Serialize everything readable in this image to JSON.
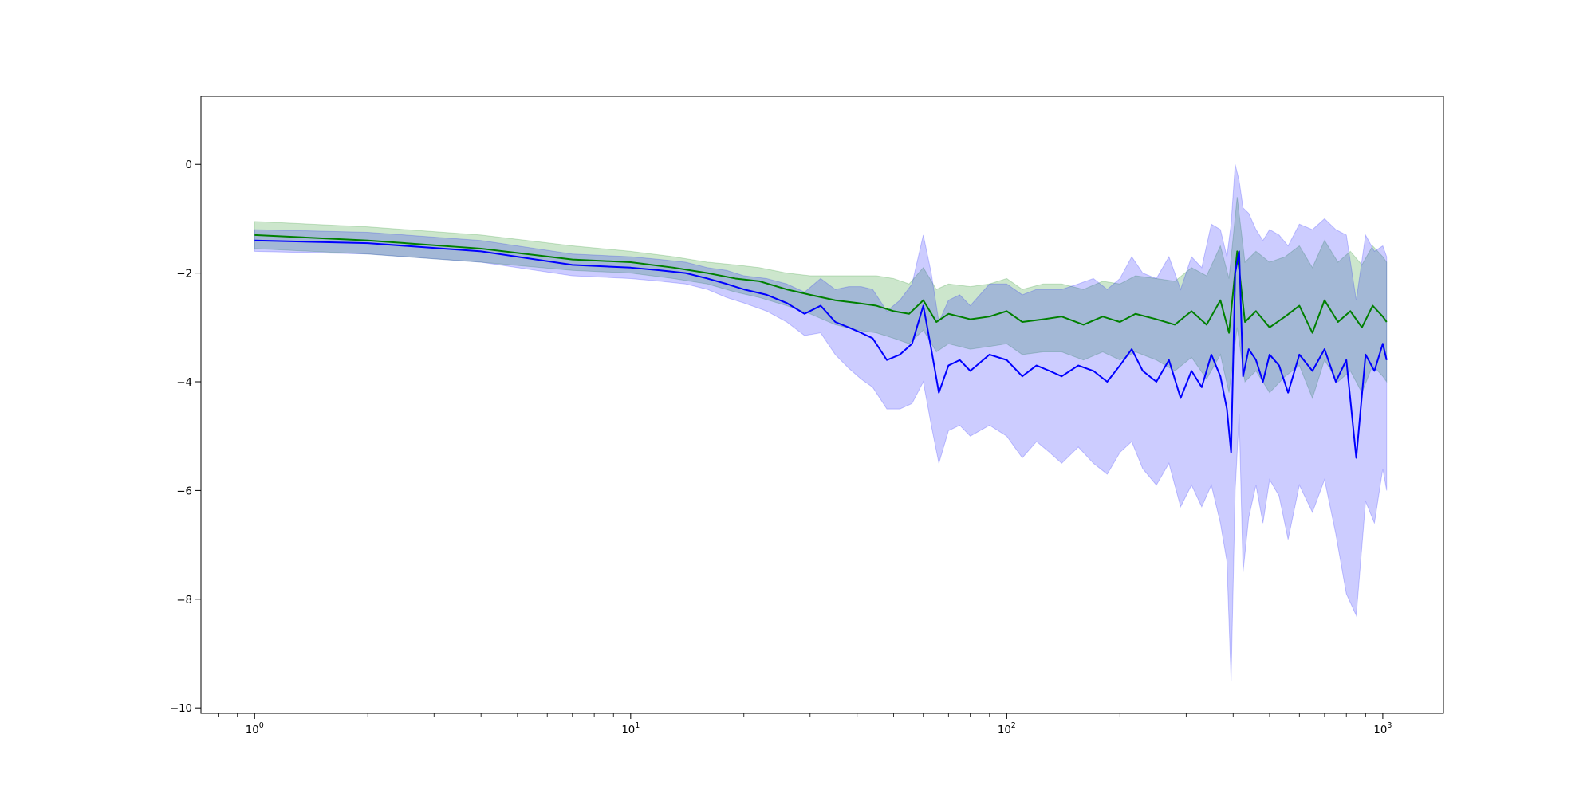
{
  "chart_data": {
    "type": "line",
    "title": "",
    "xlabel": "",
    "ylabel": "",
    "xscale": "log",
    "xlim": [
      0.72,
      1450
    ],
    "ylim": [
      -10.1,
      1.25
    ],
    "grid": false,
    "legend": "none",
    "x_ticks": [
      {
        "base": "10",
        "exp": "0",
        "value": 1
      },
      {
        "base": "10",
        "exp": "1",
        "value": 10
      },
      {
        "base": "10",
        "exp": "2",
        "value": 100
      },
      {
        "base": "10",
        "exp": "3",
        "value": 1000
      }
    ],
    "y_ticks": [
      {
        "label": "0",
        "value": 0
      },
      {
        "label": "−2",
        "value": -2
      },
      {
        "label": "−4",
        "value": -4
      },
      {
        "label": "−6",
        "value": -6
      },
      {
        "label": "−8",
        "value": -8
      },
      {
        "label": "−10",
        "value": -10
      }
    ],
    "series": [
      {
        "color": "#008000",
        "band_color": "#008000",
        "band_opacity": 0.2,
        "x": [
          1,
          2,
          4,
          7,
          10,
          13,
          16,
          19,
          22,
          26,
          30,
          35,
          40,
          45,
          50,
          55,
          60,
          65,
          70,
          80,
          90,
          100,
          110,
          125,
          140,
          160,
          180,
          200,
          220,
          250,
          280,
          310,
          340,
          370,
          390,
          410,
          430,
          460,
          500,
          550,
          600,
          650,
          700,
          760,
          820,
          880,
          940,
          1000,
          1024
        ],
        "values": [
          -1.3,
          -1.4,
          -1.55,
          -1.75,
          -1.8,
          -1.9,
          -2.0,
          -2.1,
          -2.15,
          -2.3,
          -2.4,
          -2.5,
          -2.55,
          -2.6,
          -2.7,
          -2.75,
          -2.5,
          -2.9,
          -2.75,
          -2.85,
          -2.8,
          -2.7,
          -2.9,
          -2.85,
          -2.8,
          -2.95,
          -2.8,
          -2.9,
          -2.75,
          -2.85,
          -2.95,
          -2.7,
          -2.95,
          -2.5,
          -3.1,
          -1.6,
          -2.9,
          -2.7,
          -3.0,
          -2.8,
          -2.6,
          -3.1,
          -2.5,
          -2.9,
          -2.7,
          -3.0,
          -2.6,
          -2.8,
          -2.9
        ],
        "band_low": [
          -1.55,
          -1.65,
          -1.8,
          -1.95,
          -2.0,
          -2.1,
          -2.2,
          -2.35,
          -2.45,
          -2.6,
          -2.75,
          -2.95,
          -3.05,
          -3.1,
          -3.2,
          -3.3,
          -3.05,
          -3.45,
          -3.3,
          -3.4,
          -3.35,
          -3.3,
          -3.5,
          -3.45,
          -3.45,
          -3.6,
          -3.45,
          -3.6,
          -3.45,
          -3.6,
          -3.8,
          -3.55,
          -3.95,
          -3.5,
          -4.2,
          -3.0,
          -4.0,
          -3.8,
          -4.2,
          -3.9,
          -3.7,
          -4.3,
          -3.6,
          -4.0,
          -3.8,
          -4.2,
          -3.7,
          -3.9,
          -4.0
        ],
        "band_high": [
          -1.05,
          -1.15,
          -1.3,
          -1.5,
          -1.6,
          -1.7,
          -1.8,
          -1.85,
          -1.9,
          -2.0,
          -2.05,
          -2.05,
          -2.05,
          -2.05,
          -2.1,
          -2.2,
          -1.9,
          -2.3,
          -2.2,
          -2.25,
          -2.2,
          -2.1,
          -2.3,
          -2.2,
          -2.2,
          -2.3,
          -2.15,
          -2.2,
          -2.05,
          -2.1,
          -2.15,
          -1.9,
          -2.05,
          -1.5,
          -2.1,
          -0.6,
          -1.8,
          -1.6,
          -1.8,
          -1.7,
          -1.5,
          -1.9,
          -1.4,
          -1.8,
          -1.6,
          -1.85,
          -1.5,
          -1.7,
          -1.8
        ]
      },
      {
        "color": "#0000ff",
        "band_color": "#0000ff",
        "band_opacity": 0.2,
        "x": [
          1,
          2,
          4,
          7,
          10,
          12,
          14,
          16,
          18,
          20,
          23,
          26,
          29,
          32,
          35,
          38,
          41,
          44,
          48,
          52,
          56,
          60,
          63,
          66,
          70,
          75,
          80,
          90,
          100,
          110,
          120,
          130,
          140,
          155,
          170,
          185,
          200,
          215,
          230,
          250,
          270,
          290,
          310,
          330,
          350,
          370,
          385,
          395,
          405,
          415,
          425,
          440,
          460,
          480,
          500,
          530,
          560,
          600,
          650,
          700,
          750,
          800,
          850,
          900,
          950,
          1000,
          1024
        ],
        "values": [
          -1.4,
          -1.45,
          -1.6,
          -1.85,
          -1.9,
          -1.95,
          -2.0,
          -2.1,
          -2.2,
          -2.3,
          -2.4,
          -2.55,
          -2.75,
          -2.6,
          -2.9,
          -3.0,
          -3.1,
          -3.2,
          -3.6,
          -3.5,
          -3.3,
          -2.6,
          -3.4,
          -4.2,
          -3.7,
          -3.6,
          -3.8,
          -3.5,
          -3.6,
          -3.9,
          -3.7,
          -3.8,
          -3.9,
          -3.7,
          -3.8,
          -4.0,
          -3.7,
          -3.4,
          -3.8,
          -4.0,
          -3.6,
          -4.3,
          -3.8,
          -4.1,
          -3.5,
          -3.9,
          -4.5,
          -5.3,
          -2.0,
          -1.6,
          -3.9,
          -3.4,
          -3.6,
          -4.0,
          -3.5,
          -3.7,
          -4.2,
          -3.5,
          -3.8,
          -3.4,
          -4.0,
          -3.6,
          -5.4,
          -3.5,
          -3.8,
          -3.3,
          -3.6
        ],
        "band_low": [
          -1.6,
          -1.65,
          -1.8,
          -2.05,
          -2.1,
          -2.15,
          -2.2,
          -2.3,
          -2.45,
          -2.55,
          -2.7,
          -2.9,
          -3.15,
          -3.1,
          -3.5,
          -3.75,
          -3.95,
          -4.1,
          -4.5,
          -4.5,
          -4.4,
          -4.0,
          -4.8,
          -5.5,
          -4.9,
          -4.8,
          -5.0,
          -4.8,
          -5.0,
          -5.4,
          -5.1,
          -5.3,
          -5.5,
          -5.2,
          -5.5,
          -5.7,
          -5.3,
          -5.1,
          -5.6,
          -5.9,
          -5.5,
          -6.3,
          -5.9,
          -6.3,
          -5.9,
          -6.6,
          -7.3,
          -9.5,
          -6.0,
          -4.6,
          -7.5,
          -6.5,
          -5.9,
          -6.6,
          -5.8,
          -6.1,
          -6.9,
          -5.9,
          -6.4,
          -5.8,
          -6.8,
          -7.9,
          -8.3,
          -6.2,
          -6.6,
          -5.6,
          -6.0
        ],
        "band_high": [
          -1.2,
          -1.25,
          -1.4,
          -1.65,
          -1.7,
          -1.75,
          -1.8,
          -1.9,
          -1.95,
          -2.05,
          -2.1,
          -2.2,
          -2.35,
          -2.1,
          -2.3,
          -2.25,
          -2.25,
          -2.3,
          -2.7,
          -2.5,
          -2.2,
          -1.3,
          -2.0,
          -2.9,
          -2.5,
          -2.4,
          -2.6,
          -2.2,
          -2.2,
          -2.4,
          -2.3,
          -2.3,
          -2.3,
          -2.2,
          -2.1,
          -2.3,
          -2.1,
          -1.7,
          -2.0,
          -2.1,
          -1.7,
          -2.3,
          -1.7,
          -1.9,
          -1.1,
          -1.2,
          -1.7,
          -1.1,
          0.0,
          -0.3,
          -0.8,
          -0.9,
          -1.2,
          -1.4,
          -1.2,
          -1.3,
          -1.5,
          -1.1,
          -1.2,
          -1.0,
          -1.2,
          -1.3,
          -2.5,
          -1.3,
          -1.6,
          -1.5,
          -1.7
        ]
      }
    ]
  }
}
